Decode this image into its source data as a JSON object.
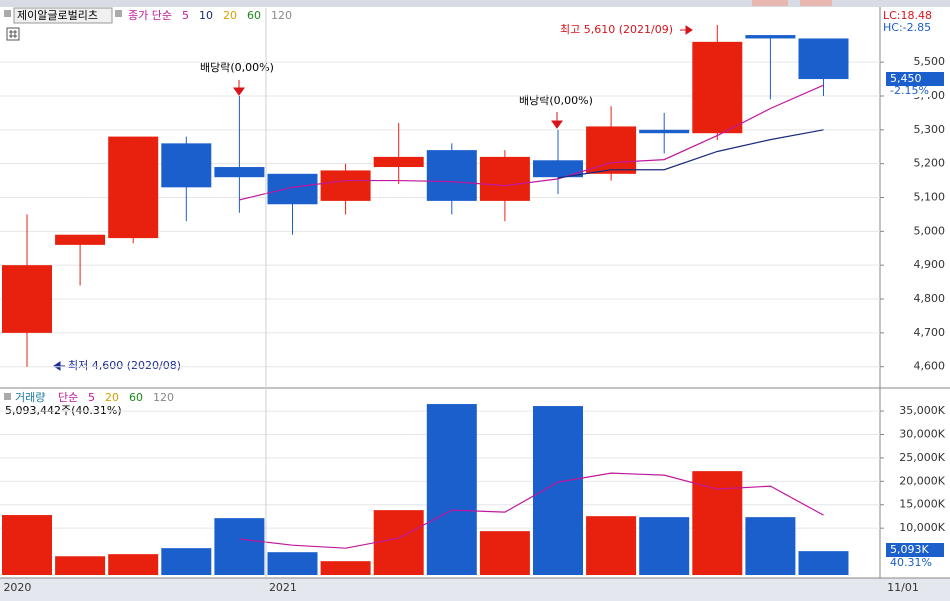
{
  "chart_data": [
    {
      "type": "candlestick",
      "title": "제이알글로벌리츠",
      "legend_prefix": "종가 단순",
      "open": [
        4700,
        4960,
        4980,
        5260,
        5190,
        5170,
        5090,
        5190,
        5240,
        5090,
        5210,
        5170,
        5300,
        5290,
        5580,
        5570
      ],
      "high": [
        5050,
        4990,
        5280,
        5280,
        5400,
        5170,
        5200,
        5320,
        5260,
        5240,
        5300,
        5370,
        5350,
        5610,
        5580,
        5570
      ],
      "low": [
        4600,
        4840,
        4965,
        5030,
        5055,
        4990,
        5050,
        5140,
        5050,
        5030,
        5110,
        5150,
        5230,
        5270,
        5390,
        5400
      ],
      "close": [
        4900,
        4990,
        5280,
        5130,
        5160,
        5080,
        5180,
        5220,
        5090,
        5220,
        5160,
        5310,
        5290,
        5560,
        5570,
        5450
      ],
      "up_color": "#e8210f",
      "down_color": "#1a5fcc",
      "series": [
        {
          "name": "5",
          "color": "#c0189c",
          "values": [
            null,
            null,
            null,
            null,
            5093,
            5130,
            5150,
            5150,
            5147,
            5135,
            5155,
            5203,
            5212,
            5283,
            5363,
            5432
          ]
        },
        {
          "name": "10",
          "color": "#1a2a7a",
          "values": [
            null,
            null,
            null,
            null,
            null,
            null,
            null,
            null,
            null,
            null,
            5158,
            5182,
            5182,
            5236,
            5271,
            5300
          ]
        }
      ],
      "legend_extra": [
        {
          "name": "20",
          "color": "#d9a000"
        },
        {
          "name": "60",
          "color": "#1a8a1a"
        },
        {
          "name": "120",
          "color": "#888888"
        }
      ],
      "ylim": [
        4540,
        5660
      ],
      "yticks": [
        {
          "value": 5500,
          "label": "5,500"
        },
        {
          "value": 5400,
          "label": "5,400"
        },
        {
          "value": 5300,
          "label": "5,300"
        },
        {
          "value": 5200,
          "label": "5,200"
        },
        {
          "value": 5100,
          "label": "5,100"
        },
        {
          "value": 5000,
          "label": "5,000"
        },
        {
          "value": 4900,
          "label": "4,900"
        },
        {
          "value": 4800,
          "label": "4,800"
        },
        {
          "value": 4700,
          "label": "4,700"
        },
        {
          "value": 4600,
          "label": "4,600"
        }
      ],
      "lc_label": "LC:18.48",
      "hc_label": "HC:-2.85",
      "current_price_label": "5,450",
      "current_change_label": "-2.15%",
      "annotations": [
        "배당락(0,00%)",
        "배당락(0,00%)",
        "최고 5,610 (2021/09)",
        "최저 4,600 (2020/08)"
      ]
    },
    {
      "type": "bar",
      "title": "거래량",
      "legend_prefix": "단순",
      "categories": [
        "2020",
        null,
        null,
        null,
        null,
        "2021",
        null,
        null,
        null,
        null,
        null,
        null,
        null,
        null,
        null,
        null
      ],
      "values": [
        12800,
        4000,
        4450,
        5730,
        12140,
        4870,
        2950,
        13850,
        36500,
        9360,
        36070,
        12560,
        12350,
        22180,
        12350,
        5093
      ],
      "series": [
        {
          "name": "5",
          "color": "#c0189c",
          "values": [
            null,
            null,
            null,
            null,
            7670,
            6370,
            5730,
            7860,
            13850,
            13420,
            19830,
            21750,
            21320,
            18330,
            18970,
            12780
          ]
        }
      ],
      "legend_extra": [
        {
          "name": "20",
          "color": "#d9a000"
        },
        {
          "name": "60",
          "color": "#1a8a1a"
        },
        {
          "name": "120",
          "color": "#888888"
        }
      ],
      "ylim": [
        0,
        39500
      ],
      "yticks": [
        {
          "value": 35000,
          "label": "35,000K"
        },
        {
          "value": 30000,
          "label": "30,000K"
        },
        {
          "value": 25000,
          "label": "25,000K"
        },
        {
          "value": 20000,
          "label": "20,000K"
        },
        {
          "value": 15000,
          "label": "15,000K"
        },
        {
          "value": 10000,
          "label": "10,000K"
        }
      ],
      "info_label": "5,093,442주(40.31%)",
      "current_volume_label": "5,093K",
      "current_ratio_label": "40.31%",
      "x_end_label": "11/01"
    }
  ]
}
